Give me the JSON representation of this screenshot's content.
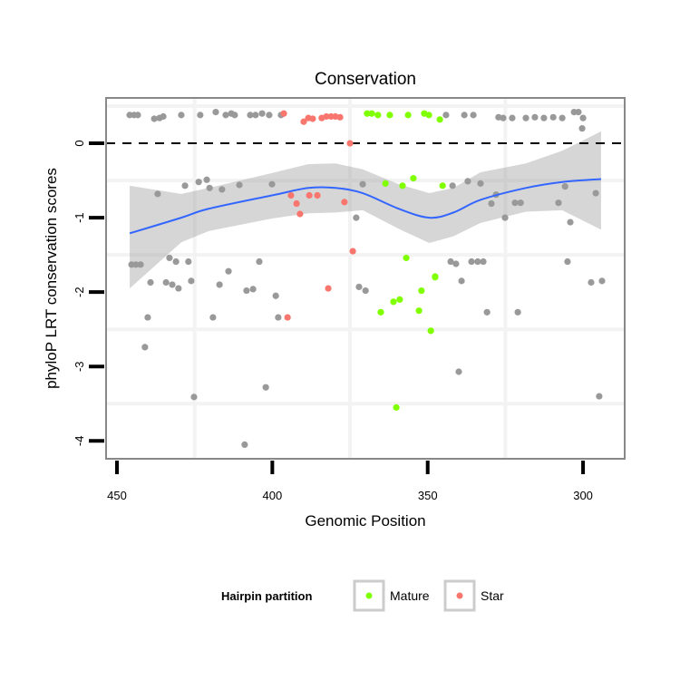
{
  "chart_data": {
    "type": "scatter",
    "title": "Conservation",
    "xlabel": "Genomic Position",
    "ylabel": "phyloP LRT conservation scores",
    "xlim": [
      453.5,
      286.6
    ],
    "x_reversed": true,
    "ylim": [
      -4.24,
      0.61
    ],
    "x_ticks": [
      450,
      400,
      350,
      300
    ],
    "x_tick_labels": [
      "450",
      "400",
      "350",
      "300"
    ],
    "y_ticks": [
      0,
      -1,
      -2,
      -3,
      -4
    ],
    "y_tick_labels": [
      "0",
      "-1",
      "-2",
      "-3",
      "-4"
    ],
    "x_grid_minor": [
      425,
      375,
      325
    ],
    "y_grid_minor": [
      0.5,
      -0.5,
      -1.5,
      -2.5,
      -3.5
    ],
    "reference_line": {
      "y": 0,
      "style": "dashed"
    },
    "legend": {
      "title": "Hairpin partition",
      "placement": "bottom",
      "entries": [
        {
          "label": "Mature",
          "color": "#7FFF00"
        },
        {
          "label": "Star",
          "color": "#F8766D"
        }
      ]
    },
    "colors": {
      "other": "#999999",
      "Mature": "#7FFF00",
      "Star": "#F8766D",
      "smooth": "#3366FF",
      "band": "#999999",
      "panel_border": "#888888",
      "grid": "#f3f3f3"
    },
    "series": [
      {
        "name": "Other",
        "color": "#999999",
        "points": [
          [
            445.9,
            0.38
          ],
          [
            444.5,
            0.38
          ],
          [
            443.3,
            0.38
          ],
          [
            438.0,
            0.33
          ],
          [
            436.3,
            0.34
          ],
          [
            435.1,
            0.36
          ],
          [
            429.3,
            0.38
          ],
          [
            423.2,
            0.38
          ],
          [
            418.2,
            0.42
          ],
          [
            415.0,
            0.38
          ],
          [
            413.2,
            0.4
          ],
          [
            412.1,
            0.38
          ],
          [
            407.1,
            0.38
          ],
          [
            405.4,
            0.38
          ],
          [
            403.3,
            0.4
          ],
          [
            401.0,
            0.38
          ],
          [
            397.2,
            0.38
          ],
          [
            344.1,
            0.38
          ],
          [
            338.2,
            0.38
          ],
          [
            335.3,
            0.38
          ],
          [
            327.2,
            0.35
          ],
          [
            325.7,
            0.34
          ],
          [
            322.8,
            0.34
          ],
          [
            318.4,
            0.34
          ],
          [
            315.5,
            0.35
          ],
          [
            312.6,
            0.34
          ],
          [
            309.6,
            0.35
          ],
          [
            306.7,
            0.34
          ],
          [
            302.9,
            0.42
          ],
          [
            301.5,
            0.42
          ],
          [
            300.0,
            0.34
          ],
          [
            300.3,
            0.2
          ],
          [
            436.9,
            -0.68
          ],
          [
            428.1,
            -0.57
          ],
          [
            423.7,
            -0.52
          ],
          [
            421.1,
            -0.49
          ],
          [
            420.2,
            -0.6
          ],
          [
            416.2,
            -0.62
          ],
          [
            410.6,
            -0.56
          ],
          [
            400.1,
            -0.55
          ],
          [
            370.9,
            -0.55
          ],
          [
            373.0,
            -1.0
          ],
          [
            342.0,
            -0.57
          ],
          [
            337.1,
            -0.51
          ],
          [
            333.0,
            -0.54
          ],
          [
            328.0,
            -0.69
          ],
          [
            329.5,
            -0.81
          ],
          [
            321.9,
            -0.8
          ],
          [
            320.1,
            -0.8
          ],
          [
            325.1,
            -1.0
          ],
          [
            307.9,
            -0.8
          ],
          [
            305.8,
            -0.58
          ],
          [
            304.1,
            -1.06
          ],
          [
            295.9,
            -0.67
          ],
          [
            445.3,
            -1.63
          ],
          [
            443.9,
            -1.63
          ],
          [
            442.4,
            -1.63
          ],
          [
            433.1,
            -1.54
          ],
          [
            431.0,
            -1.59
          ],
          [
            427.0,
            -1.59
          ],
          [
            414.1,
            -1.72
          ],
          [
            404.2,
            -1.59
          ],
          [
            342.6,
            -1.59
          ],
          [
            340.9,
            -1.62
          ],
          [
            335.9,
            -1.59
          ],
          [
            333.9,
            -1.59
          ],
          [
            332.1,
            -1.59
          ],
          [
            305.0,
            -1.59
          ],
          [
            439.2,
            -1.87
          ],
          [
            434.2,
            -1.87
          ],
          [
            432.2,
            -1.9
          ],
          [
            430.2,
            -1.95
          ],
          [
            426.1,
            -1.85
          ],
          [
            417.0,
            -1.9
          ],
          [
            408.3,
            -1.98
          ],
          [
            406.2,
            -1.96
          ],
          [
            398.9,
            -2.05
          ],
          [
            372.1,
            -1.93
          ],
          [
            370.0,
            -1.98
          ],
          [
            339.1,
            -1.85
          ],
          [
            330.9,
            -2.27
          ],
          [
            321.0,
            -2.27
          ],
          [
            297.4,
            -1.87
          ],
          [
            293.9,
            -1.85
          ],
          [
            440.1,
            -2.34
          ],
          [
            419.1,
            -2.34
          ],
          [
            398.1,
            -2.34
          ],
          [
            441.0,
            -2.74
          ],
          [
            340.0,
            -3.07
          ],
          [
            402.1,
            -3.28
          ],
          [
            425.2,
            -3.41
          ],
          [
            294.8,
            -3.4
          ],
          [
            408.9,
            -4.05
          ]
        ]
      },
      {
        "name": "Star",
        "color": "#F8766D",
        "points": [
          [
            396.3,
            0.4
          ],
          [
            389.9,
            0.29
          ],
          [
            388.4,
            0.34
          ],
          [
            387.0,
            0.33
          ],
          [
            384.1,
            0.34
          ],
          [
            382.6,
            0.36
          ],
          [
            381.1,
            0.36
          ],
          [
            379.7,
            0.36
          ],
          [
            378.2,
            0.35
          ],
          [
            375.0,
            0.0
          ],
          [
            394.0,
            -0.7
          ],
          [
            392.2,
            -0.81
          ],
          [
            391.1,
            -0.95
          ],
          [
            388.1,
            -0.7
          ],
          [
            385.5,
            -0.7
          ],
          [
            376.8,
            -0.79
          ],
          [
            374.1,
            -1.45
          ],
          [
            382.0,
            -1.95
          ],
          [
            395.1,
            -2.34
          ]
        ]
      },
      {
        "name": "Mature",
        "color": "#7FFF00",
        "points": [
          [
            369.5,
            0.4
          ],
          [
            368.0,
            0.4
          ],
          [
            366.0,
            0.38
          ],
          [
            362.2,
            0.38
          ],
          [
            356.3,
            0.38
          ],
          [
            351.1,
            0.4
          ],
          [
            349.6,
            0.38
          ],
          [
            346.1,
            0.32
          ],
          [
            363.6,
            -0.54
          ],
          [
            358.1,
            -0.57
          ],
          [
            354.6,
            -0.47
          ],
          [
            345.2,
            -0.57
          ],
          [
            356.9,
            -1.54
          ],
          [
            347.6,
            -1.79
          ],
          [
            347.6,
            -1.8
          ],
          [
            352.0,
            -1.98
          ],
          [
            359.0,
            -2.1
          ],
          [
            361.0,
            -2.13
          ],
          [
            365.1,
            -2.27
          ],
          [
            352.8,
            -2.25
          ],
          [
            349.0,
            -2.52
          ],
          [
            360.1,
            -3.55
          ]
        ]
      }
    ],
    "smooth": {
      "method": "loess",
      "x": [
        445.9,
        429.3,
        420.5,
        400.1,
        388.4,
        379.7,
        370.9,
        359.3,
        349.5,
        341.7,
        333.0,
        318.4,
        306.7,
        294.2
      ],
      "y": [
        -1.21,
        -1.0,
        -0.88,
        -0.7,
        -0.6,
        -0.6,
        -0.67,
        -0.88,
        -1.0,
        -0.93,
        -0.76,
        -0.6,
        -0.52,
        -0.48
      ],
      "upper": [
        -0.57,
        -0.68,
        -0.6,
        -0.4,
        -0.28,
        -0.27,
        -0.35,
        -0.55,
        -0.67,
        -0.6,
        -0.39,
        -0.27,
        -0.1,
        0.16
      ],
      "lower": [
        -1.95,
        -1.33,
        -1.18,
        -1.01,
        -0.94,
        -0.93,
        -0.9,
        -1.15,
        -1.34,
        -1.25,
        -1.07,
        -0.92,
        -0.9,
        -1.16
      ]
    }
  }
}
